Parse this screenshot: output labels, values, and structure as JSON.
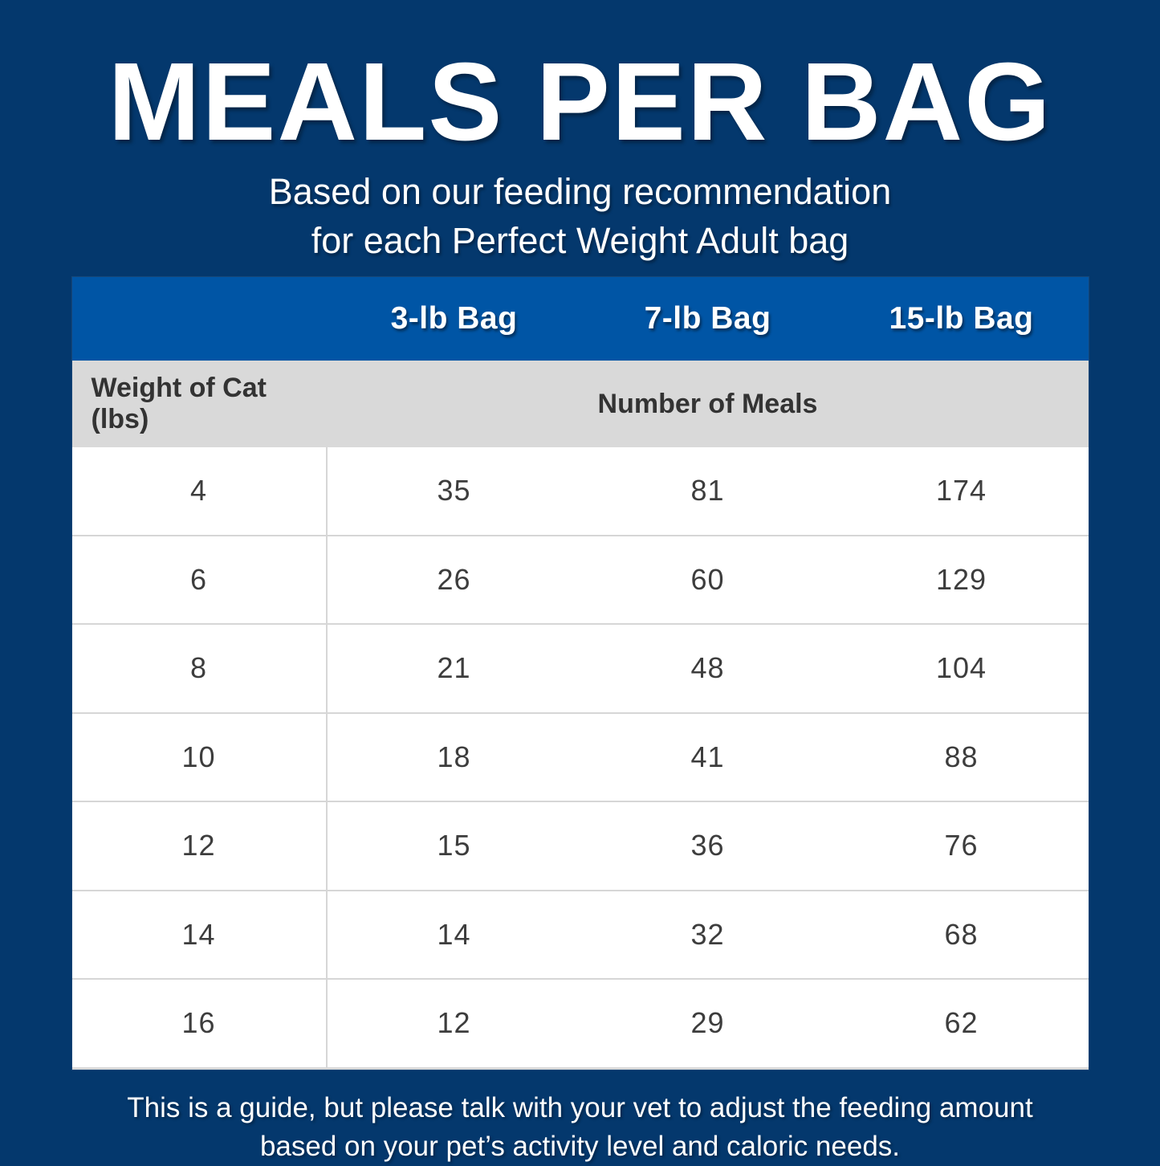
{
  "header": {
    "title": "MEALS PER BAG",
    "subtitle_line1": "Based on our feeding recommendation",
    "subtitle_line2": "for each Perfect Weight Adult bag"
  },
  "table": {
    "columns": [
      "3-lb Bag",
      "7-lb Bag",
      "15-lb Bag"
    ],
    "weight_label": "Weight of Cat (lbs)",
    "meals_label": "Number of Meals",
    "rows": [
      {
        "weight": "4",
        "meals": [
          "35",
          "81",
          "174"
        ]
      },
      {
        "weight": "6",
        "meals": [
          "26",
          "60",
          "129"
        ]
      },
      {
        "weight": "8",
        "meals": [
          "21",
          "48",
          "104"
        ]
      },
      {
        "weight": "10",
        "meals": [
          "18",
          "41",
          "88"
        ]
      },
      {
        "weight": "12",
        "meals": [
          "15",
          "36",
          "76"
        ]
      },
      {
        "weight": "14",
        "meals": [
          "14",
          "32",
          "68"
        ]
      },
      {
        "weight": "16",
        "meals": [
          "12",
          "29",
          "62"
        ]
      }
    ]
  },
  "footer": {
    "line1": "This is a guide, but please talk with your vet to adjust the feeding amount",
    "line2": "based on your pet’s activity level and caloric needs."
  },
  "colors": {
    "background": "#04386d",
    "header_blue": "#0055a5",
    "subheader_gray": "#d9d9d9",
    "row_border": "#d6d6d6",
    "cell_text": "#3d3d3d",
    "label_text": "#333333",
    "title_text": "#ffffff"
  },
  "chart_data": {
    "type": "table",
    "title": "MEALS PER BAG",
    "subtitle": "Based on our feeding recommendation for each Perfect Weight Adult bag",
    "columns": [
      "Weight of Cat (lbs)",
      "3-lb Bag",
      "7-lb Bag",
      "15-lb Bag"
    ],
    "group_header": "Number of Meals",
    "rows": [
      [
        4,
        35,
        81,
        174
      ],
      [
        6,
        26,
        60,
        129
      ],
      [
        8,
        21,
        48,
        104
      ],
      [
        10,
        18,
        41,
        88
      ],
      [
        12,
        15,
        36,
        76
      ],
      [
        14,
        14,
        32,
        68
      ],
      [
        16,
        12,
        29,
        62
      ]
    ],
    "footnote": "This is a guide, but please talk with your vet to adjust the feeding amount based on your pet’s activity level and caloric needs."
  }
}
